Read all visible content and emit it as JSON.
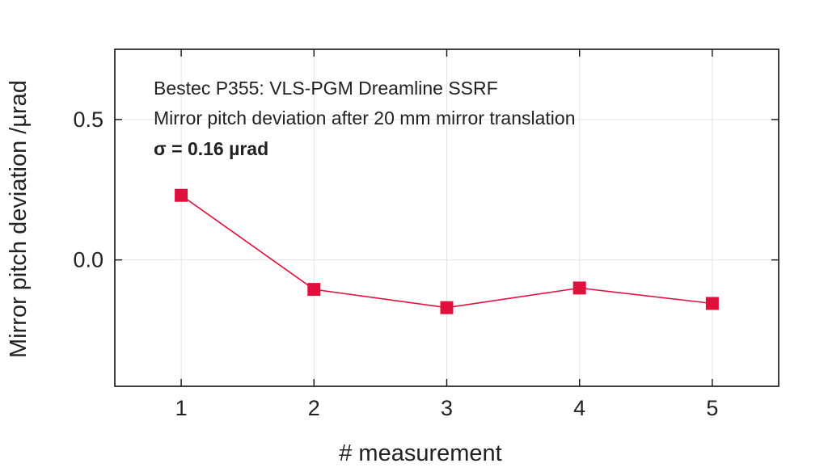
{
  "chart_data": {
    "type": "line",
    "xlabel": "# measurement",
    "ylabel": "Mirror pitch deviation /µrad",
    "x": [
      1,
      2,
      3,
      4,
      5
    ],
    "xticks": [
      "1",
      "2",
      "3",
      "4",
      "5"
    ],
    "xlim": [
      0.5,
      5.5
    ],
    "ylim": [
      -0.45,
      0.75
    ],
    "yticks": [
      "0.0",
      "0.5"
    ],
    "ytick_values": [
      0.0,
      0.5
    ],
    "grid": true,
    "series": [
      {
        "values": [
          0.23,
          -0.105,
          -0.17,
          -0.1,
          -0.155
        ],
        "color": "#e0103c",
        "marker": "square"
      }
    ],
    "annotations": [
      "Bestec P355: VLS-PGM Dreamline SSRF",
      "Mirror pitch deviation after 20 mm mirror translation",
      "σ  = 0.16 µrad"
    ]
  }
}
